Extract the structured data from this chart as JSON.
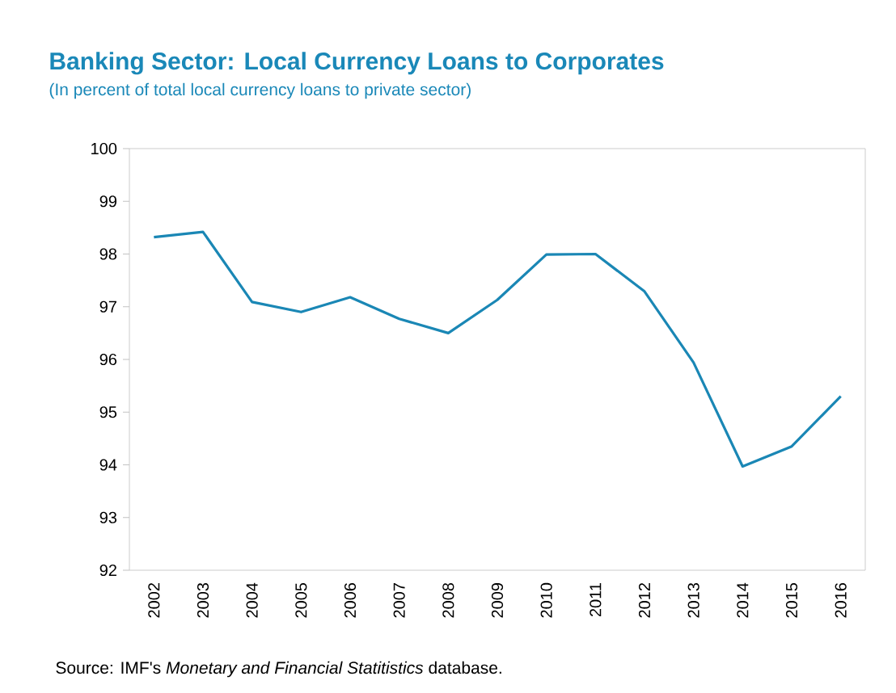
{
  "chart_data": {
    "type": "line",
    "title": "Banking Sector: Local Currency Loans to Corporates",
    "subtitle": "(In percent of total local currency loans to private sector)",
    "categories": [
      "2002",
      "2003",
      "2004",
      "2005",
      "2006",
      "2007",
      "2008",
      "2009",
      "2010",
      "2011",
      "2012",
      "2013",
      "2014",
      "2015",
      "2016"
    ],
    "series": [
      {
        "color": "#1a87b5",
        "values": [
          98.32,
          98.42,
          97.09,
          96.9,
          97.18,
          96.77,
          96.5,
          97.13,
          97.99,
          98.0,
          97.29,
          95.94,
          93.97,
          94.35,
          95.3
        ]
      }
    ],
    "ylim": [
      92,
      100
    ],
    "yticks": [
      92,
      93,
      94,
      95,
      96,
      97,
      98,
      99,
      100
    ],
    "annotations": [
      "Source: IMF's *Monetary and Financial Statitistics* database."
    ]
  }
}
